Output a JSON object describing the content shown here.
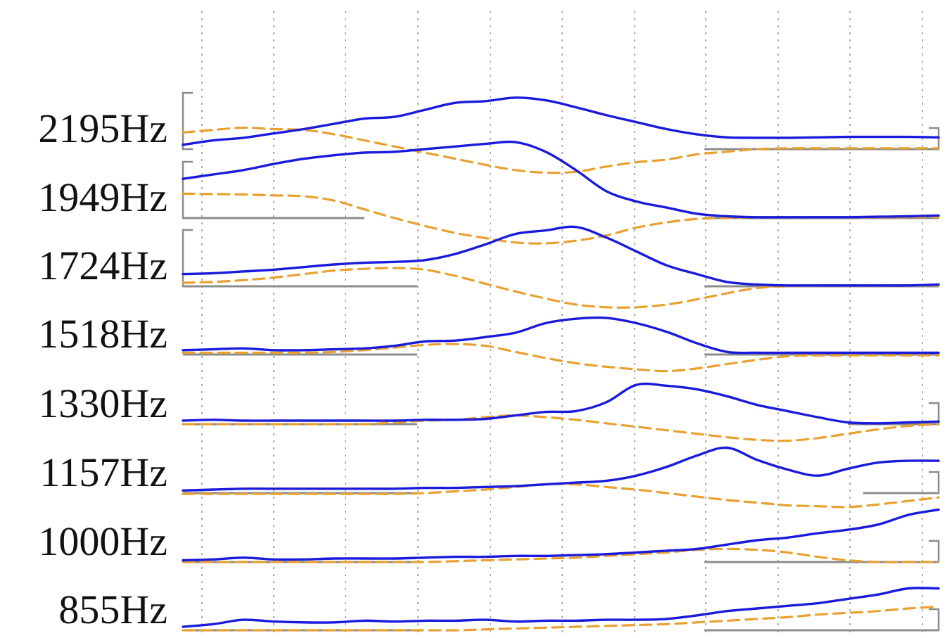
{
  "chart_data": {
    "type": "line",
    "title": "",
    "xlabel": "",
    "ylabel": "",
    "x": [
      0,
      0.04,
      0.08,
      0.12,
      0.16,
      0.2,
      0.24,
      0.28,
      0.32,
      0.36,
      0.4,
      0.44,
      0.48,
      0.52,
      0.56,
      0.6,
      0.64,
      0.68,
      0.72,
      0.76,
      0.8,
      0.84,
      0.88,
      0.92,
      0.96,
      1.0
    ],
    "grid": "vertical-dotted",
    "colors": {
      "solid": "#1a1adc",
      "dashed": "#e8a030",
      "axes": "#8c8c8c",
      "grid": "#9a9a9a"
    },
    "rows": [
      {
        "label": "2195Hz",
        "solid": [
          0.1,
          0.2,
          0.26,
          0.36,
          0.46,
          0.58,
          0.7,
          0.74,
          0.9,
          1.06,
          1.1,
          1.18,
          1.12,
          0.96,
          0.78,
          0.62,
          0.46,
          0.34,
          0.27,
          0.26,
          0.26,
          0.27,
          0.28,
          0.28,
          0.28,
          0.27
        ],
        "dashed": [
          0.38,
          0.44,
          0.49,
          0.46,
          0.44,
          0.34,
          0.2,
          0.06,
          -0.08,
          -0.22,
          -0.36,
          -0.48,
          -0.54,
          -0.52,
          -0.4,
          -0.3,
          -0.24,
          -0.12,
          -0.06,
          0.0,
          0.02,
          0.02,
          0.02,
          0.02,
          0.02,
          0.02
        ],
        "baseline_segments": [
          [
            0,
            0.0
          ],
          [
            0.69,
            1.0
          ]
        ],
        "bracket_ends": [
          "left",
          "right"
        ]
      },
      {
        "label": "1949Hz",
        "solid": [
          0.9,
          1.0,
          1.1,
          1.24,
          1.36,
          1.44,
          1.5,
          1.52,
          1.58,
          1.64,
          1.7,
          1.74,
          1.52,
          1.1,
          0.62,
          0.38,
          0.24,
          0.1,
          0.04,
          0.02,
          0.02,
          0.02,
          0.02,
          0.03,
          0.04,
          0.06
        ],
        "dashed": [
          0.56,
          0.55,
          0.54,
          0.52,
          0.5,
          0.4,
          0.2,
          0.0,
          -0.18,
          -0.34,
          -0.46,
          -0.56,
          -0.58,
          -0.52,
          -0.4,
          -0.22,
          -0.1,
          -0.02,
          0.0,
          0.02,
          0.02,
          0.02,
          0.02,
          0.02,
          0.02,
          0.02
        ],
        "baseline_segments": [
          [
            0,
            0.24
          ],
          [
            0.69,
            1.0
          ]
        ],
        "bracket_ends": [
          "left"
        ]
      },
      {
        "label": "1724Hz",
        "solid": [
          0.28,
          0.3,
          0.34,
          0.38,
          0.44,
          0.5,
          0.54,
          0.56,
          0.6,
          0.74,
          0.96,
          1.2,
          1.28,
          1.36,
          1.12,
          0.8,
          0.48,
          0.28,
          0.1,
          0.04,
          0.02,
          0.02,
          0.02,
          0.02,
          0.02,
          0.04
        ],
        "dashed": [
          0.08,
          0.1,
          0.14,
          0.2,
          0.28,
          0.36,
          0.4,
          0.42,
          0.38,
          0.24,
          0.06,
          -0.12,
          -0.28,
          -0.42,
          -0.48,
          -0.48,
          -0.42,
          -0.3,
          -0.16,
          -0.04,
          0.0,
          0.02,
          0.02,
          0.02,
          0.02,
          0.02
        ],
        "baseline_segments": [
          [
            0,
            0.31
          ],
          [
            0.69,
            1.0
          ]
        ],
        "bracket_ends": [
          "left"
        ]
      },
      {
        "label": "1518Hz",
        "solid": [
          0.1,
          0.12,
          0.14,
          0.1,
          0.1,
          0.12,
          0.14,
          0.2,
          0.3,
          0.32,
          0.4,
          0.5,
          0.72,
          0.82,
          0.84,
          0.72,
          0.52,
          0.26,
          0.06,
          0.04,
          0.04,
          0.04,
          0.04,
          0.04,
          0.04,
          0.04
        ],
        "dashed": [
          0.04,
          0.04,
          0.04,
          0.04,
          0.04,
          0.06,
          0.1,
          0.16,
          0.22,
          0.24,
          0.2,
          0.06,
          -0.08,
          -0.2,
          -0.28,
          -0.34,
          -0.38,
          -0.32,
          -0.22,
          -0.12,
          -0.04,
          -0.02,
          -0.02,
          -0.02,
          -0.02,
          -0.02
        ],
        "baseline_segments": [
          [
            0,
            0.31
          ],
          [
            0.69,
            1.0
          ]
        ],
        "bracket_ends": []
      },
      {
        "label": "1330Hz",
        "solid": [
          0.08,
          0.1,
          0.08,
          0.08,
          0.08,
          0.08,
          0.08,
          0.08,
          0.1,
          0.1,
          0.12,
          0.2,
          0.28,
          0.3,
          0.5,
          0.9,
          0.88,
          0.8,
          0.64,
          0.44,
          0.3,
          0.16,
          0.04,
          0.02,
          0.04,
          0.06
        ],
        "dashed": [
          0.0,
          0.0,
          0.0,
          0.0,
          0.0,
          0.0,
          0.0,
          0.04,
          0.08,
          0.1,
          0.16,
          0.2,
          0.16,
          0.1,
          0.02,
          -0.06,
          -0.14,
          -0.22,
          -0.3,
          -0.36,
          -0.38,
          -0.32,
          -0.22,
          -0.12,
          -0.04,
          0.0
        ],
        "baseline_segments": [
          [
            0,
            0.31
          ],
          [
            0.88,
            1.0
          ]
        ],
        "bracket_ends": [
          "right"
        ]
      },
      {
        "label": "1157Hz",
        "solid": [
          0.06,
          0.08,
          0.1,
          0.1,
          0.1,
          0.1,
          0.1,
          0.1,
          0.12,
          0.12,
          0.14,
          0.16,
          0.2,
          0.24,
          0.28,
          0.4,
          0.6,
          0.86,
          1.04,
          0.76,
          0.54,
          0.4,
          0.56,
          0.7,
          0.74,
          0.74
        ],
        "dashed": [
          -0.02,
          -0.02,
          -0.02,
          -0.02,
          -0.02,
          -0.02,
          -0.02,
          -0.02,
          0.0,
          0.04,
          0.08,
          0.14,
          0.2,
          0.2,
          0.14,
          0.08,
          0.0,
          -0.08,
          -0.16,
          -0.22,
          -0.28,
          -0.3,
          -0.32,
          -0.26,
          -0.18,
          -0.1
        ],
        "baseline_segments": [
          [
            0,
            0.31
          ],
          [
            0.9,
            1.0
          ]
        ],
        "bracket_ends": [
          "right"
        ]
      },
      {
        "label": "1000Hz",
        "solid": [
          0.04,
          0.06,
          0.1,
          0.06,
          0.06,
          0.08,
          0.08,
          0.08,
          0.1,
          0.12,
          0.12,
          0.14,
          0.14,
          0.16,
          0.18,
          0.22,
          0.26,
          0.3,
          0.4,
          0.5,
          0.56,
          0.66,
          0.74,
          0.86,
          1.08,
          1.2
        ],
        "dashed": [
          0.0,
          0.0,
          0.0,
          0.0,
          0.0,
          0.0,
          0.0,
          0.0,
          0.0,
          0.02,
          0.04,
          0.06,
          0.08,
          0.1,
          0.14,
          0.18,
          0.22,
          0.28,
          0.3,
          0.28,
          0.22,
          0.12,
          0.04,
          0.0,
          0.0,
          0.0
        ],
        "baseline_segments": [
          [
            0,
            0.31
          ],
          [
            0.69,
            1.0
          ]
        ],
        "bracket_ends": [
          "right"
        ]
      },
      {
        "label": "855Hz",
        "solid": [
          0.08,
          0.14,
          0.24,
          0.2,
          0.18,
          0.18,
          0.22,
          0.2,
          0.22,
          0.22,
          0.24,
          0.2,
          0.22,
          0.22,
          0.24,
          0.24,
          0.26,
          0.34,
          0.44,
          0.5,
          0.56,
          0.62,
          0.72,
          0.82,
          0.96,
          0.96
        ],
        "dashed": [
          0.0,
          0.0,
          0.0,
          0.0,
          0.0,
          0.0,
          0.0,
          0.0,
          0.0,
          0.0,
          0.02,
          0.04,
          0.06,
          0.08,
          0.1,
          0.12,
          0.14,
          0.18,
          0.22,
          0.26,
          0.3,
          0.36,
          0.4,
          0.44,
          0.5,
          0.54
        ],
        "baseline_segments": [
          [
            0,
            0.31
          ],
          [
            0.69,
            1.0
          ]
        ],
        "bracket_ends": [
          "right"
        ]
      }
    ]
  }
}
